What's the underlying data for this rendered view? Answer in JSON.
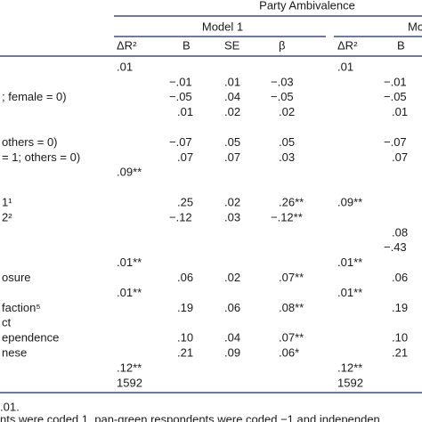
{
  "table": {
    "header": {
      "group": "Party Ambivalence",
      "model1": "Model 1",
      "model2": "Mc",
      "columns": [
        "ΔR²",
        "B",
        "SE",
        "β",
        "ΔR²",
        "B"
      ]
    },
    "rows": [
      {
        "label": null,
        "cells": [
          ".01",
          null,
          null,
          null,
          ".01",
          null
        ]
      },
      {
        "label": null,
        "cells": [
          null,
          "−.01",
          ".01",
          "−.03",
          null,
          "−.01"
        ]
      },
      {
        "label": "; female = 0)",
        "cells": [
          null,
          "−.05",
          ".04",
          "−.05",
          null,
          "−.05"
        ]
      },
      {
        "label": null,
        "cells": [
          null,
          ".01",
          ".02",
          ".02",
          null,
          ".01"
        ]
      },
      {
        "label": null,
        "cells": [
          null,
          null,
          null,
          null,
          null,
          null
        ]
      },
      {
        "label": "others = 0)",
        "cells": [
          null,
          "−.07",
          ".05",
          ".05",
          null,
          "−.07"
        ]
      },
      {
        "label": "= 1; others = 0)",
        "cells": [
          null,
          ".07",
          ".07",
          ".03",
          null,
          ".07"
        ]
      },
      {
        "label": null,
        "cells": [
          ".09**",
          null,
          null,
          null,
          null,
          null
        ]
      },
      {
        "label": null,
        "cells": [
          null,
          null,
          null,
          null,
          null,
          null
        ]
      },
      {
        "label": "1¹",
        "cells": [
          null,
          ".25",
          ".02",
          ".26**",
          ".09**",
          null
        ]
      },
      {
        "label": "2²",
        "cells": [
          null,
          "−.12",
          ".03",
          "−.12**",
          null,
          null
        ]
      },
      {
        "label": null,
        "cells": [
          null,
          null,
          null,
          null,
          null,
          ".08"
        ]
      },
      {
        "label": null,
        "cells": [
          null,
          null,
          null,
          null,
          null,
          "−.43"
        ]
      },
      {
        "label": null,
        "cells": [
          ".01**",
          null,
          null,
          null,
          ".01**",
          null
        ]
      },
      {
        "label": "osure",
        "cells": [
          null,
          ".06",
          ".02",
          ".07**",
          null,
          ".06"
        ]
      },
      {
        "label": null,
        "cells": [
          ".01**",
          null,
          null,
          null,
          ".01**",
          null
        ]
      },
      {
        "label": "faction⁵",
        "cells": [
          null,
          ".19",
          ".06",
          ".08**",
          null,
          ".19"
        ]
      },
      {
        "label": "ct",
        "cells": [
          null,
          null,
          null,
          null,
          null,
          null
        ]
      },
      {
        "label": "ependence",
        "cells": [
          null,
          ".10",
          ".04",
          ".07**",
          null,
          ".10"
        ]
      },
      {
        "label": "nese",
        "cells": [
          null,
          ".21",
          ".09",
          ".06*",
          null,
          ".21"
        ]
      },
      {
        "label": null,
        "cells": [
          ".12**",
          null,
          null,
          null,
          ".12**",
          null
        ]
      },
      {
        "label": null,
        "cells": [
          "1592",
          null,
          null,
          null,
          "1592",
          null
        ]
      }
    ],
    "notes": [
      ".01.",
      "nts were coded 1, pan-green respondents were coded −1 and independen"
    ]
  }
}
